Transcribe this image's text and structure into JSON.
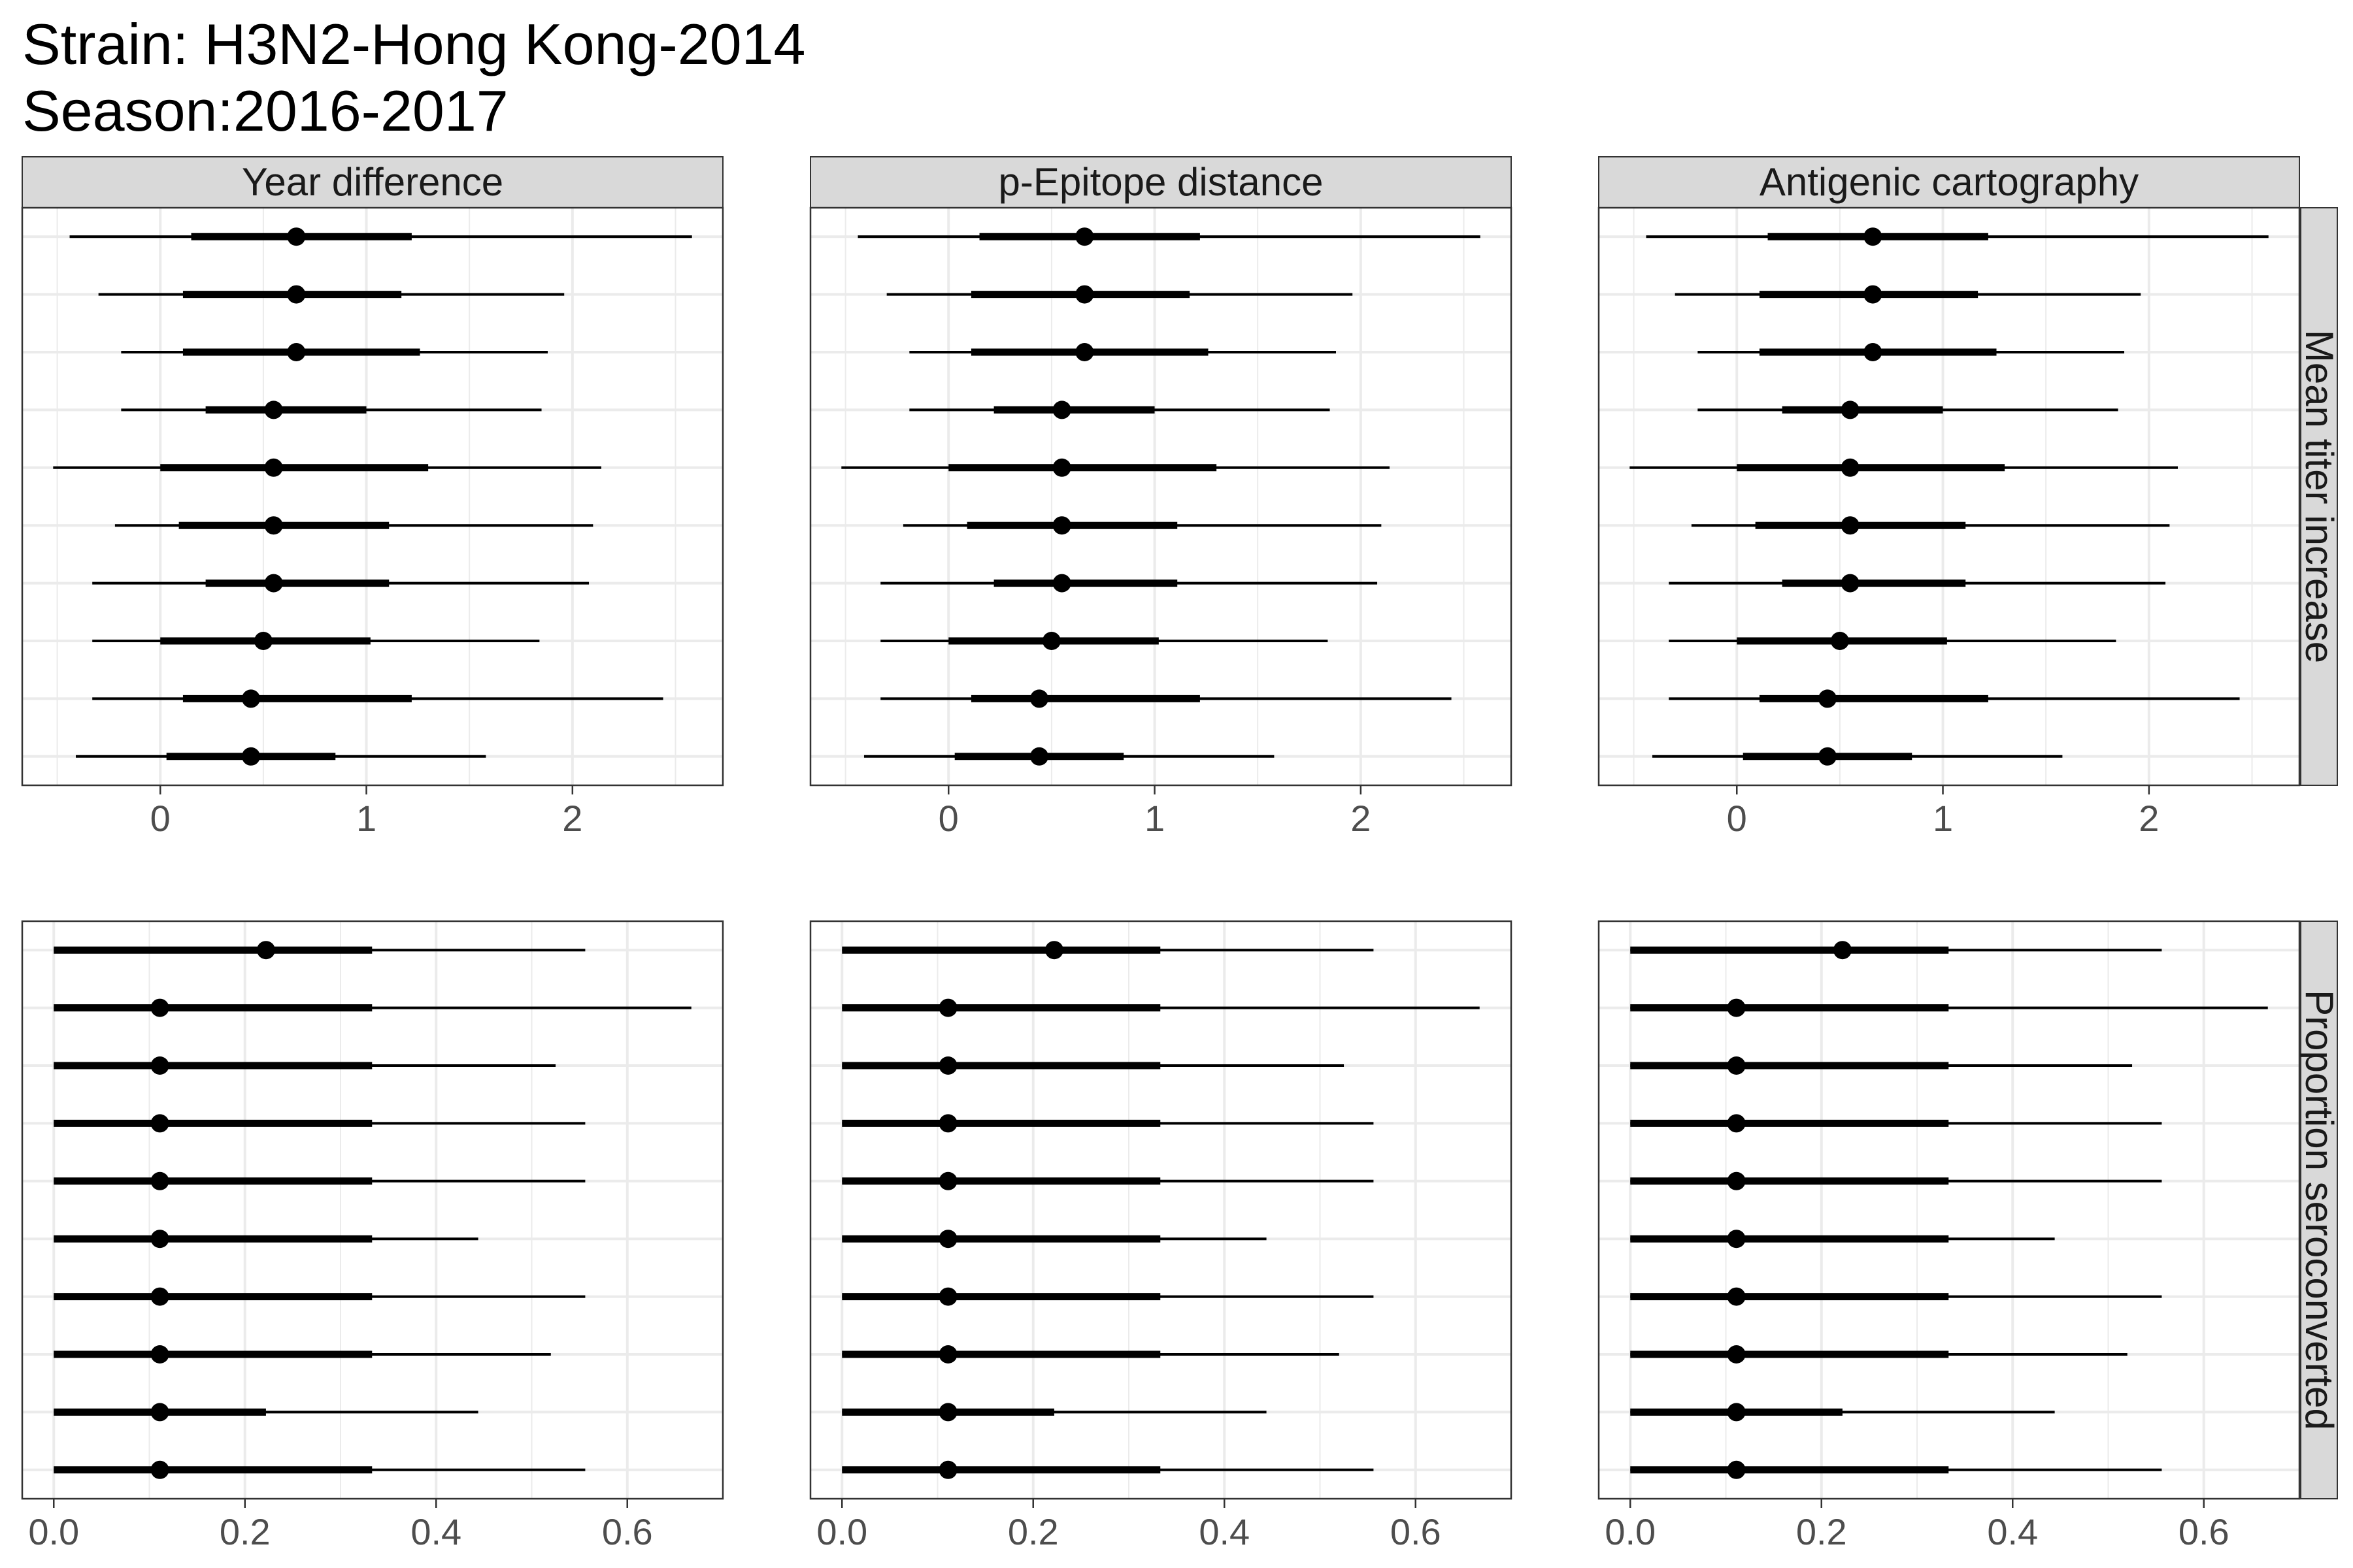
{
  "title": {
    "line1": "Strain: H3N2-Hong Kong-2014",
    "line2": "Season:2016-2017"
  },
  "chart_data": {
    "type": "pointrange",
    "columns": [
      "Year difference",
      "p-Epitope distance",
      "Antigenic cartography"
    ],
    "rows": [
      {
        "name": "Mean titer increase",
        "xlim": [
          -0.67,
          2.73
        ],
        "xticks": [
          0,
          1,
          2
        ],
        "xtick_labels": [
          "0",
          "1",
          "2"
        ],
        "minor_gridlines": [
          -0.5,
          0.5,
          1.5,
          2.5
        ],
        "panels": [
          [
            {
              "est": 0.66,
              "inner": [
                0.15,
                1.22
              ],
              "outer": [
                -0.44,
                2.58
              ]
            },
            {
              "est": 0.66,
              "inner": [
                0.11,
                1.17
              ],
              "outer": [
                -0.3,
                1.96
              ]
            },
            {
              "est": 0.66,
              "inner": [
                0.11,
                1.26
              ],
              "outer": [
                -0.19,
                1.88
              ]
            },
            {
              "est": 0.55,
              "inner": [
                0.22,
                1.0
              ],
              "outer": [
                -0.19,
                1.85
              ]
            },
            {
              "est": 0.55,
              "inner": [
                0.0,
                1.3
              ],
              "outer": [
                -0.52,
                2.14
              ]
            },
            {
              "est": 0.55,
              "inner": [
                0.09,
                1.11
              ],
              "outer": [
                -0.22,
                2.1
              ]
            },
            {
              "est": 0.55,
              "inner": [
                0.22,
                1.11
              ],
              "outer": [
                -0.33,
                2.08
              ]
            },
            {
              "est": 0.5,
              "inner": [
                0.0,
                1.02
              ],
              "outer": [
                -0.33,
                1.84
              ]
            },
            {
              "est": 0.44,
              "inner": [
                0.11,
                1.22
              ],
              "outer": [
                -0.33,
                2.44
              ]
            },
            {
              "est": 0.44,
              "inner": [
                0.03,
                0.85
              ],
              "outer": [
                -0.41,
                1.58
              ]
            }
          ],
          [
            {
              "est": 0.66,
              "inner": [
                0.15,
                1.22
              ],
              "outer": [
                -0.44,
                2.58
              ]
            },
            {
              "est": 0.66,
              "inner": [
                0.11,
                1.17
              ],
              "outer": [
                -0.3,
                1.96
              ]
            },
            {
              "est": 0.66,
              "inner": [
                0.11,
                1.26
              ],
              "outer": [
                -0.19,
                1.88
              ]
            },
            {
              "est": 0.55,
              "inner": [
                0.22,
                1.0
              ],
              "outer": [
                -0.19,
                1.85
              ]
            },
            {
              "est": 0.55,
              "inner": [
                0.0,
                1.3
              ],
              "outer": [
                -0.52,
                2.14
              ]
            },
            {
              "est": 0.55,
              "inner": [
                0.09,
                1.11
              ],
              "outer": [
                -0.22,
                2.1
              ]
            },
            {
              "est": 0.55,
              "inner": [
                0.22,
                1.11
              ],
              "outer": [
                -0.33,
                2.08
              ]
            },
            {
              "est": 0.5,
              "inner": [
                0.0,
                1.02
              ],
              "outer": [
                -0.33,
                1.84
              ]
            },
            {
              "est": 0.44,
              "inner": [
                0.11,
                1.22
              ],
              "outer": [
                -0.33,
                2.44
              ]
            },
            {
              "est": 0.44,
              "inner": [
                0.03,
                0.85
              ],
              "outer": [
                -0.41,
                1.58
              ]
            }
          ],
          [
            {
              "est": 0.66,
              "inner": [
                0.15,
                1.22
              ],
              "outer": [
                -0.44,
                2.58
              ]
            },
            {
              "est": 0.66,
              "inner": [
                0.11,
                1.17
              ],
              "outer": [
                -0.3,
                1.96
              ]
            },
            {
              "est": 0.66,
              "inner": [
                0.11,
                1.26
              ],
              "outer": [
                -0.19,
                1.88
              ]
            },
            {
              "est": 0.55,
              "inner": [
                0.22,
                1.0
              ],
              "outer": [
                -0.19,
                1.85
              ]
            },
            {
              "est": 0.55,
              "inner": [
                0.0,
                1.3
              ],
              "outer": [
                -0.52,
                2.14
              ]
            },
            {
              "est": 0.55,
              "inner": [
                0.09,
                1.11
              ],
              "outer": [
                -0.22,
                2.1
              ]
            },
            {
              "est": 0.55,
              "inner": [
                0.22,
                1.11
              ],
              "outer": [
                -0.33,
                2.08
              ]
            },
            {
              "est": 0.5,
              "inner": [
                0.0,
                1.02
              ],
              "outer": [
                -0.33,
                1.84
              ]
            },
            {
              "est": 0.44,
              "inner": [
                0.11,
                1.22
              ],
              "outer": [
                -0.33,
                2.44
              ]
            },
            {
              "est": 0.44,
              "inner": [
                0.03,
                0.85
              ],
              "outer": [
                -0.41,
                1.58
              ]
            }
          ]
        ]
      },
      {
        "name": "Proportion seroconverted",
        "xlim": [
          -0.033,
          0.7
        ],
        "xticks": [
          0.0,
          0.2,
          0.4,
          0.6
        ],
        "xtick_labels": [
          "0.0",
          "0.2",
          "0.4",
          "0.6"
        ],
        "minor_gridlines": [
          0.1,
          0.3,
          0.5,
          0.7
        ],
        "panels": [
          [
            {
              "est": 0.222,
              "inner": [
                0.0,
                0.333
              ],
              "outer": [
                0.0,
                0.556
              ]
            },
            {
              "est": 0.111,
              "inner": [
                0.0,
                0.333
              ],
              "outer": [
                0.0,
                0.667
              ]
            },
            {
              "est": 0.111,
              "inner": [
                0.0,
                0.333
              ],
              "outer": [
                0.0,
                0.525
              ]
            },
            {
              "est": 0.111,
              "inner": [
                0.0,
                0.333
              ],
              "outer": [
                0.0,
                0.556
              ]
            },
            {
              "est": 0.111,
              "inner": [
                0.0,
                0.333
              ],
              "outer": [
                0.0,
                0.556
              ]
            },
            {
              "est": 0.111,
              "inner": [
                0.0,
                0.333
              ],
              "outer": [
                0.0,
                0.444
              ]
            },
            {
              "est": 0.111,
              "inner": [
                0.0,
                0.333
              ],
              "outer": [
                0.0,
                0.556
              ]
            },
            {
              "est": 0.111,
              "inner": [
                0.0,
                0.333
              ],
              "outer": [
                0.0,
                0.52
              ]
            },
            {
              "est": 0.111,
              "inner": [
                0.0,
                0.222
              ],
              "outer": [
                0.0,
                0.444
              ]
            },
            {
              "est": 0.111,
              "inner": [
                0.0,
                0.333
              ],
              "outer": [
                0.0,
                0.556
              ]
            }
          ],
          [
            {
              "est": 0.222,
              "inner": [
                0.0,
                0.333
              ],
              "outer": [
                0.0,
                0.556
              ]
            },
            {
              "est": 0.111,
              "inner": [
                0.0,
                0.333
              ],
              "outer": [
                0.0,
                0.667
              ]
            },
            {
              "est": 0.111,
              "inner": [
                0.0,
                0.333
              ],
              "outer": [
                0.0,
                0.525
              ]
            },
            {
              "est": 0.111,
              "inner": [
                0.0,
                0.333
              ],
              "outer": [
                0.0,
                0.556
              ]
            },
            {
              "est": 0.111,
              "inner": [
                0.0,
                0.333
              ],
              "outer": [
                0.0,
                0.556
              ]
            },
            {
              "est": 0.111,
              "inner": [
                0.0,
                0.333
              ],
              "outer": [
                0.0,
                0.444
              ]
            },
            {
              "est": 0.111,
              "inner": [
                0.0,
                0.333
              ],
              "outer": [
                0.0,
                0.556
              ]
            },
            {
              "est": 0.111,
              "inner": [
                0.0,
                0.333
              ],
              "outer": [
                0.0,
                0.52
              ]
            },
            {
              "est": 0.111,
              "inner": [
                0.0,
                0.222
              ],
              "outer": [
                0.0,
                0.444
              ]
            },
            {
              "est": 0.111,
              "inner": [
                0.0,
                0.333
              ],
              "outer": [
                0.0,
                0.556
              ]
            }
          ],
          [
            {
              "est": 0.222,
              "inner": [
                0.0,
                0.333
              ],
              "outer": [
                0.0,
                0.556
              ]
            },
            {
              "est": 0.111,
              "inner": [
                0.0,
                0.333
              ],
              "outer": [
                0.0,
                0.667
              ]
            },
            {
              "est": 0.111,
              "inner": [
                0.0,
                0.333
              ],
              "outer": [
                0.0,
                0.525
              ]
            },
            {
              "est": 0.111,
              "inner": [
                0.0,
                0.333
              ],
              "outer": [
                0.0,
                0.556
              ]
            },
            {
              "est": 0.111,
              "inner": [
                0.0,
                0.333
              ],
              "outer": [
                0.0,
                0.556
              ]
            },
            {
              "est": 0.111,
              "inner": [
                0.0,
                0.333
              ],
              "outer": [
                0.0,
                0.444
              ]
            },
            {
              "est": 0.111,
              "inner": [
                0.0,
                0.333
              ],
              "outer": [
                0.0,
                0.556
              ]
            },
            {
              "est": 0.111,
              "inner": [
                0.0,
                0.333
              ],
              "outer": [
                0.0,
                0.52
              ]
            },
            {
              "est": 0.111,
              "inner": [
                0.0,
                0.222
              ],
              "outer": [
                0.0,
                0.444
              ]
            },
            {
              "est": 0.111,
              "inner": [
                0.0,
                0.333
              ],
              "outer": [
                0.0,
                0.556
              ]
            }
          ]
        ]
      }
    ],
    "grid": true,
    "strip_fill": "#d9d9d9",
    "point_color": "#000000",
    "gridline_color": "#ebebeb"
  }
}
